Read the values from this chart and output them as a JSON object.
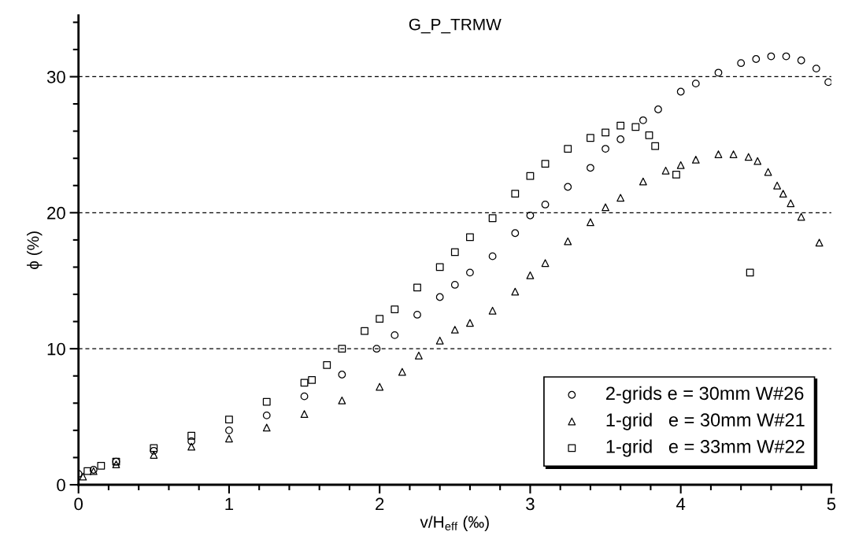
{
  "chart_data": {
    "type": "scatter",
    "title": "G_P_TRMW",
    "xlabel": "v/H$_{eff}$ (‰)",
    "ylabel": "ϕ (%)",
    "xlim": [
      0,
      5
    ],
    "ylim": [
      0,
      34.5
    ],
    "xticks": [
      0,
      1,
      2,
      3,
      4,
      5
    ],
    "yticks": [
      0,
      10,
      20,
      30
    ],
    "grid": "y",
    "legend": "bottom right",
    "series": [
      {
        "name": "2-grids e = 30mm W#26",
        "color": "#000000",
        "marker": "circle",
        "x": [
          0,
          0.1,
          0.25,
          0.5,
          0.75,
          1.0,
          1.25,
          1.5,
          1.75,
          1.98,
          2.1,
          2.25,
          2.4,
          2.5,
          2.6,
          2.75,
          2.9,
          3.0,
          3.1,
          3.25,
          3.4,
          3.5,
          3.6,
          3.75,
          3.85,
          4.0,
          4.1,
          4.25,
          4.4,
          4.5,
          4.6,
          4.7,
          4.8,
          4.9,
          4.98
        ],
        "values": [
          0.8,
          1.1,
          1.7,
          2.5,
          3.2,
          4.0,
          5.1,
          6.5,
          8.1,
          10.0,
          11.0,
          12.5,
          13.8,
          14.7,
          15.6,
          16.8,
          18.5,
          19.8,
          20.6,
          21.9,
          23.3,
          24.7,
          25.4,
          26.8,
          27.6,
          28.9,
          29.5,
          30.3,
          31.0,
          31.3,
          31.5,
          31.5,
          31.2,
          30.6,
          29.6
        ]
      },
      {
        "name": "1-grid   e = 30mm W#21",
        "color": "#000000",
        "marker": "triangle",
        "x": [
          0.03,
          0.1,
          0.25,
          0.5,
          0.75,
          1.0,
          1.25,
          1.5,
          1.75,
          2.0,
          2.15,
          2.26,
          2.4,
          2.5,
          2.6,
          2.75,
          2.9,
          3.0,
          3.1,
          3.25,
          3.4,
          3.5,
          3.6,
          3.75,
          3.9,
          4.0,
          4.1,
          4.25,
          4.35,
          4.45,
          4.51,
          4.58,
          4.64,
          4.68,
          4.73,
          4.8,
          4.92
        ],
        "values": [
          0.6,
          1.0,
          1.5,
          2.2,
          2.8,
          3.4,
          4.2,
          5.2,
          6.2,
          7.2,
          8.3,
          9.5,
          10.6,
          11.4,
          11.9,
          12.8,
          14.2,
          15.4,
          16.3,
          17.9,
          19.3,
          20.4,
          21.1,
          22.3,
          23.1,
          23.5,
          23.9,
          24.3,
          24.3,
          24.1,
          23.8,
          23.0,
          22.0,
          21.4,
          20.7,
          19.7,
          17.8
        ]
      },
      {
        "name": "1-grid   e = 33mm W#22",
        "color": "#000000",
        "marker": "square",
        "x": [
          0.06,
          0.15,
          0.25,
          0.5,
          0.75,
          1.0,
          1.25,
          1.5,
          1.55,
          1.65,
          1.75,
          1.9,
          2.0,
          2.1,
          2.25,
          2.4,
          2.5,
          2.6,
          2.75,
          2.9,
          3.0,
          3.1,
          3.25,
          3.4,
          3.5,
          3.6,
          3.7,
          3.79,
          3.83,
          3.97,
          4.46
        ],
        "values": [
          1.0,
          1.4,
          1.7,
          2.7,
          3.6,
          4.8,
          6.1,
          7.5,
          7.7,
          8.8,
          10.0,
          11.3,
          12.2,
          12.9,
          14.5,
          16.0,
          17.1,
          18.2,
          19.6,
          21.4,
          22.7,
          23.6,
          24.7,
          25.5,
          25.9,
          26.4,
          26.3,
          25.7,
          24.9,
          22.8,
          15.6
        ]
      }
    ]
  }
}
